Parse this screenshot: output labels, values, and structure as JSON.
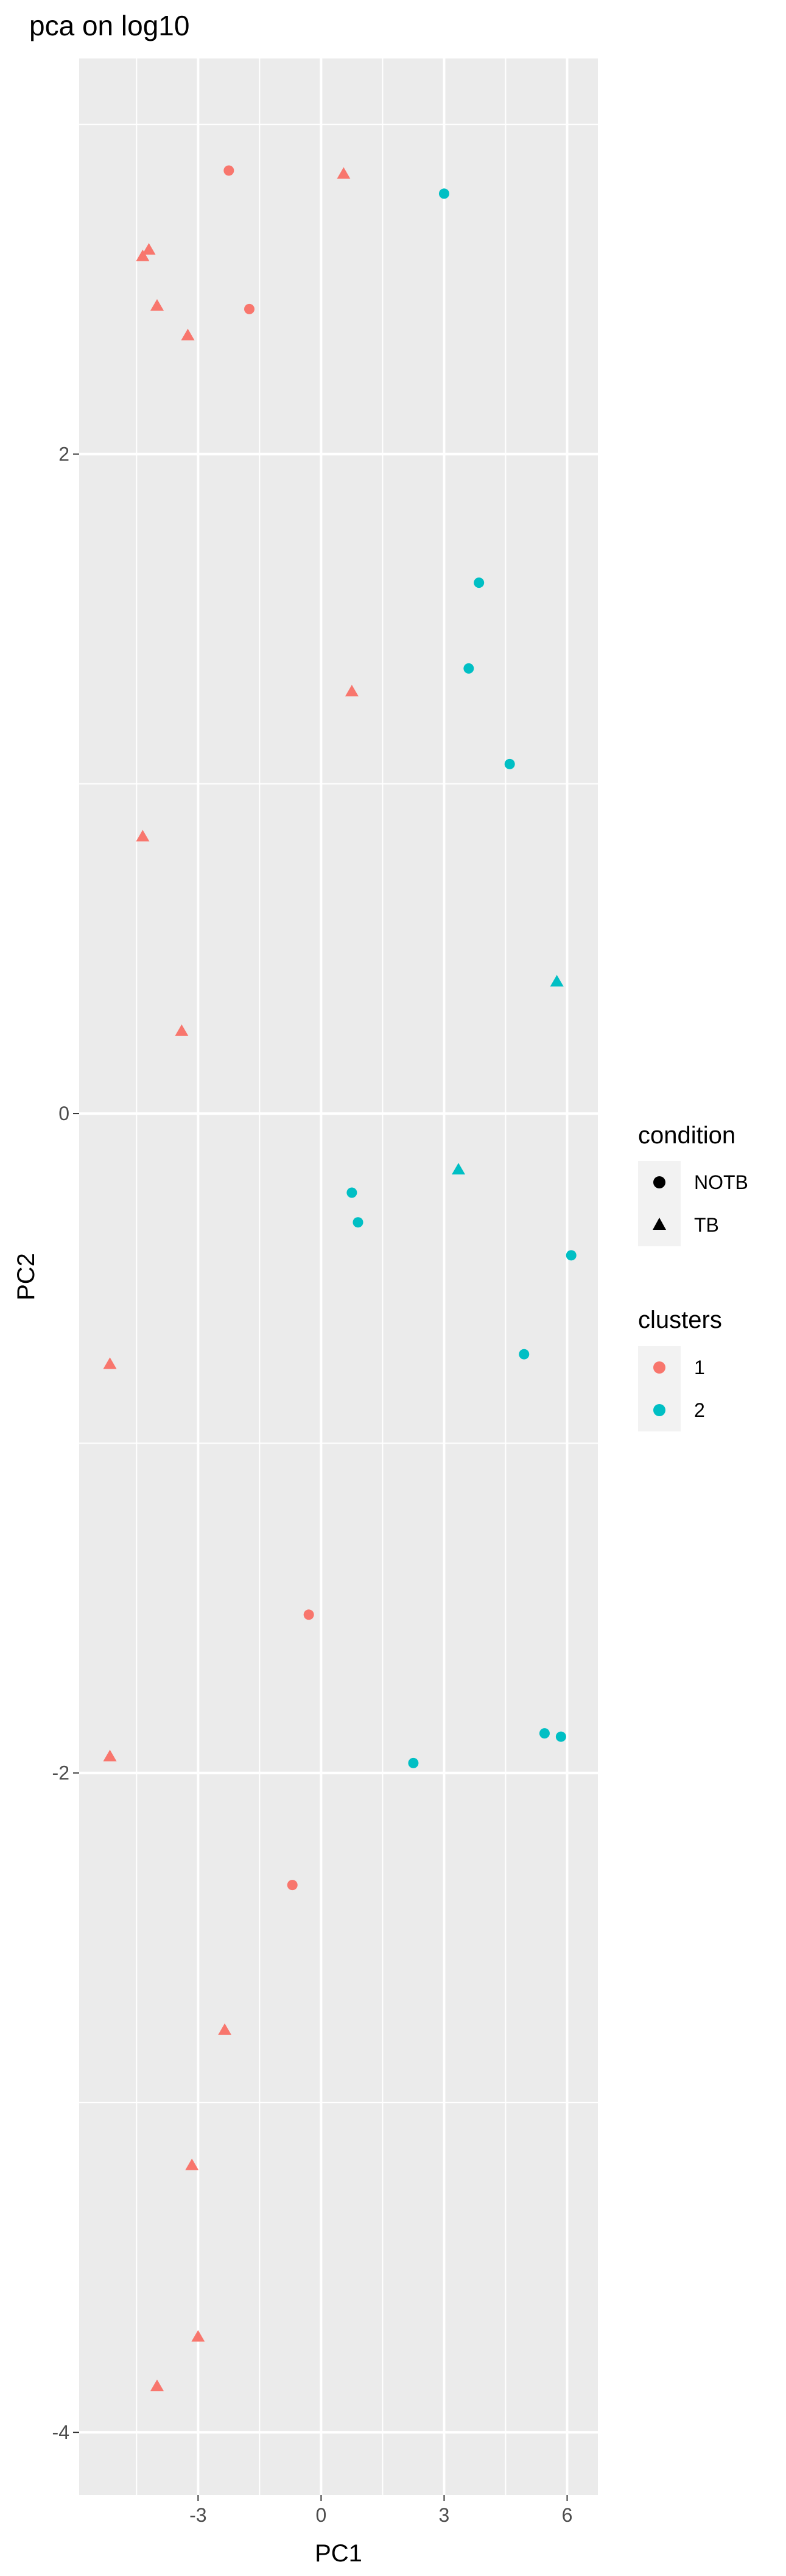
{
  "chart_data": {
    "type": "scatter",
    "title": "pca on log10",
    "xlabel": "PC1",
    "ylabel": "PC2",
    "xlim": [
      -5.9,
      6.75
    ],
    "ylim": [
      -4.19,
      3.2
    ],
    "x_ticks": [
      -3,
      0,
      3,
      6
    ],
    "y_ticks": [
      -4,
      -2,
      0,
      2
    ],
    "grid": true,
    "legend_position": "right",
    "legend": {
      "shape_title": "condition",
      "shape_entries": [
        {
          "label": "NOTB",
          "shape": "circle"
        },
        {
          "label": "TB",
          "shape": "triangle"
        }
      ],
      "color_title": "clusters",
      "color_entries": [
        {
          "label": "1",
          "color": "#F8766D"
        },
        {
          "label": "2",
          "color": "#00BFC4"
        }
      ]
    },
    "colors": {
      "1": "#F8766D",
      "2": "#00BFC4"
    },
    "points": [
      {
        "x": -2.25,
        "y": 2.86,
        "condition": "NOTB",
        "cluster": "1"
      },
      {
        "x": -1.75,
        "y": 2.44,
        "condition": "NOTB",
        "cluster": "1"
      },
      {
        "x": -0.3,
        "y": -1.52,
        "condition": "NOTB",
        "cluster": "1"
      },
      {
        "x": -0.7,
        "y": -2.34,
        "condition": "NOTB",
        "cluster": "1"
      },
      {
        "x": 0.55,
        "y": 2.85,
        "condition": "TB",
        "cluster": "1"
      },
      {
        "x": -4.35,
        "y": 2.6,
        "condition": "TB",
        "cluster": "1"
      },
      {
        "x": -4.2,
        "y": 2.62,
        "condition": "TB",
        "cluster": "1"
      },
      {
        "x": -4.0,
        "y": 2.45,
        "condition": "TB",
        "cluster": "1"
      },
      {
        "x": -3.25,
        "y": 2.36,
        "condition": "TB",
        "cluster": "1"
      },
      {
        "x": 0.75,
        "y": 1.28,
        "condition": "TB",
        "cluster": "1"
      },
      {
        "x": -4.35,
        "y": 0.84,
        "condition": "TB",
        "cluster": "1"
      },
      {
        "x": -3.4,
        "y": 0.25,
        "condition": "TB",
        "cluster": "1"
      },
      {
        "x": -5.15,
        "y": -0.76,
        "condition": "TB",
        "cluster": "1"
      },
      {
        "x": -5.15,
        "y": -1.95,
        "condition": "TB",
        "cluster": "1"
      },
      {
        "x": -2.35,
        "y": -2.78,
        "condition": "TB",
        "cluster": "1"
      },
      {
        "x": -3.15,
        "y": -3.19,
        "condition": "TB",
        "cluster": "1"
      },
      {
        "x": -3.0,
        "y": -3.71,
        "condition": "TB",
        "cluster": "1"
      },
      {
        "x": -4.0,
        "y": -3.86,
        "condition": "TB",
        "cluster": "1"
      },
      {
        "x": 3.0,
        "y": 2.79,
        "condition": "NOTB",
        "cluster": "2"
      },
      {
        "x": 3.85,
        "y": 1.61,
        "condition": "NOTB",
        "cluster": "2"
      },
      {
        "x": 3.6,
        "y": 1.35,
        "condition": "NOTB",
        "cluster": "2"
      },
      {
        "x": 4.6,
        "y": 1.06,
        "condition": "NOTB",
        "cluster": "2"
      },
      {
        "x": 0.75,
        "y": -0.24,
        "condition": "NOTB",
        "cluster": "2"
      },
      {
        "x": 0.9,
        "y": -0.33,
        "condition": "NOTB",
        "cluster": "2"
      },
      {
        "x": 6.1,
        "y": -0.43,
        "condition": "NOTB",
        "cluster": "2"
      },
      {
        "x": 4.95,
        "y": -0.73,
        "condition": "NOTB",
        "cluster": "2"
      },
      {
        "x": 2.25,
        "y": -1.97,
        "condition": "NOTB",
        "cluster": "2"
      },
      {
        "x": 5.45,
        "y": -1.88,
        "condition": "NOTB",
        "cluster": "2"
      },
      {
        "x": 5.85,
        "y": -1.89,
        "condition": "NOTB",
        "cluster": "2"
      },
      {
        "x": 5.75,
        "y": 0.4,
        "condition": "TB",
        "cluster": "2"
      },
      {
        "x": 3.35,
        "y": -0.17,
        "condition": "TB",
        "cluster": "2"
      }
    ]
  }
}
